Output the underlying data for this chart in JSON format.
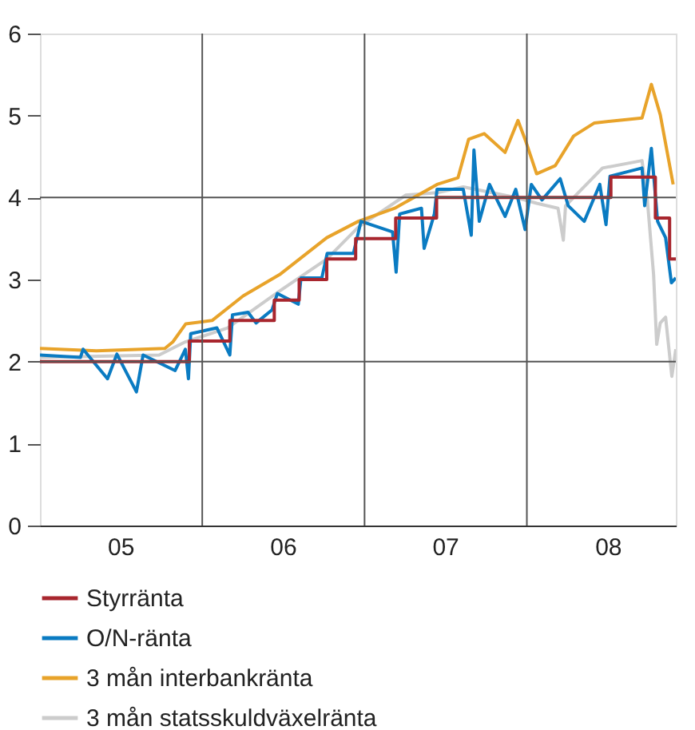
{
  "chart_data": {
    "type": "line",
    "xlim": [
      "2005-01-01",
      "2008-12-01"
    ],
    "xticks": [
      {
        "value": "2005-07-01",
        "label": "05"
      },
      {
        "value": "2006-07-01",
        "label": "06"
      },
      {
        "value": "2007-07-01",
        "label": "07"
      },
      {
        "value": "2008-07-01",
        "label": "08"
      }
    ],
    "ylim": [
      0,
      6
    ],
    "yticks": [
      0,
      1,
      2,
      3,
      4,
      5,
      6
    ],
    "grid": false,
    "legend": "bottom",
    "line_style": "solid",
    "marker": "none",
    "ref_lines": [
      {
        "axis": "x",
        "value": "2006-01-01",
        "color": "#555555"
      },
      {
        "axis": "x",
        "value": "2007-01-01",
        "color": "#555555"
      },
      {
        "axis": "x",
        "value": "2008-01-01",
        "color": "#555555"
      },
      {
        "axis": "y",
        "value": 2,
        "color": "#555555"
      },
      {
        "axis": "y",
        "value": 4,
        "color": "#555555"
      }
    ],
    "series": [
      {
        "name": "Styrränta",
        "type": "step",
        "color": "#a8262e",
        "x": [
          "2005-01-01",
          "2005-12-03",
          "2006-03-04",
          "2006-06-12",
          "2006-08-07",
          "2006-10-08",
          "2006-12-12",
          "2007-03-12",
          "2007-06-12",
          "2008-07-08",
          "2008-10-16",
          "2008-11-17",
          "2008-12-01"
        ],
        "values": [
          2.0,
          2.25,
          2.5,
          2.75,
          3.0,
          3.25,
          3.5,
          3.75,
          4.0,
          4.25,
          3.75,
          3.25,
          3.25
        ]
      },
      {
        "name": "O/N-ränta",
        "type": "line",
        "color": "#0a7bc2",
        "x": [
          "2005-01-01",
          "2005-04-02",
          "2005-04-08",
          "2005-06-02",
          "2005-06-23",
          "2005-08-06",
          "2005-08-21",
          "2005-11-01",
          "2005-11-24",
          "2005-12-01",
          "2005-12-06",
          "2006-02-03",
          "2006-03-04",
          "2006-03-10",
          "2006-04-14",
          "2006-05-02",
          "2006-06-07",
          "2006-06-19",
          "2006-08-05",
          "2006-08-11",
          "2006-09-27",
          "2006-10-09",
          "2006-12-07",
          "2006-12-24",
          "2007-03-05",
          "2007-03-13",
          "2007-03-21",
          "2007-05-09",
          "2007-05-15",
          "2007-06-07",
          "2007-06-13",
          "2007-08-11",
          "2007-08-29",
          "2007-09-04",
          "2007-09-16",
          "2007-10-09",
          "2007-11-13",
          "2007-12-07",
          "2007-12-28",
          "2008-01-11",
          "2008-02-04",
          "2008-03-16",
          "2008-04-03",
          "2008-05-09",
          "2008-06-13",
          "2008-06-27",
          "2008-07-06",
          "2008-09-16",
          "2008-09-22",
          "2008-10-07",
          "2008-10-21",
          "2008-11-08",
          "2008-11-21",
          "2008-12-01"
        ],
        "values": [
          2.08,
          2.05,
          2.15,
          1.79,
          2.09,
          1.63,
          2.08,
          1.89,
          2.15,
          1.79,
          2.34,
          2.41,
          2.08,
          2.57,
          2.6,
          2.47,
          2.63,
          2.83,
          2.7,
          3.02,
          3.02,
          3.32,
          3.32,
          3.71,
          3.58,
          3.09,
          3.8,
          3.87,
          3.38,
          3.8,
          4.1,
          4.1,
          3.54,
          4.58,
          3.71,
          4.16,
          3.77,
          4.1,
          3.61,
          4.16,
          3.97,
          4.23,
          3.9,
          3.71,
          4.16,
          3.67,
          4.26,
          4.36,
          3.9,
          4.6,
          3.71,
          3.51,
          2.96,
          3.02
        ]
      },
      {
        "name": "3 mån interbankränta",
        "type": "line",
        "color": "#e8a32a",
        "x": [
          "2005-01-01",
          "2005-05-08",
          "2005-10-09",
          "2005-10-27",
          "2005-11-25",
          "2006-01-23",
          "2006-04-03",
          "2006-06-24",
          "2006-10-08",
          "2006-12-18",
          "2007-03-10",
          "2007-06-13",
          "2007-07-30",
          "2007-08-23",
          "2007-09-27",
          "2007-11-13",
          "2007-12-12",
          "2007-12-30",
          "2008-01-23",
          "2008-03-05",
          "2008-04-15",
          "2008-06-01",
          "2008-09-16",
          "2008-10-07",
          "2008-10-27",
          "2008-11-25"
        ],
        "values": [
          2.16,
          2.13,
          2.16,
          2.24,
          2.46,
          2.5,
          2.8,
          3.06,
          3.51,
          3.71,
          3.87,
          4.16,
          4.24,
          4.71,
          4.78,
          4.55,
          4.94,
          4.68,
          4.29,
          4.39,
          4.75,
          4.91,
          4.97,
          5.38,
          5.01,
          4.16
        ]
      },
      {
        "name": "3 mån statsskuldväxelränta",
        "type": "line",
        "color": "#cccccc",
        "x": [
          "2005-01-01",
          "2005-09-26",
          "2005-11-24",
          "2006-02-27",
          "2006-06-24",
          "2006-10-08",
          "2006-12-18",
          "2007-04-04",
          "2007-06-13",
          "2007-08-11",
          "2007-12-07",
          "2008-01-23",
          "2008-03-11",
          "2008-03-23",
          "2008-03-28",
          "2008-06-19",
          "2008-09-16",
          "2008-09-28",
          "2008-10-12",
          "2008-10-19",
          "2008-10-27",
          "2008-11-08",
          "2008-11-22",
          "2008-12-01"
        ],
        "values": [
          2.05,
          2.08,
          2.24,
          2.41,
          2.86,
          3.25,
          3.64,
          4.03,
          4.06,
          4.13,
          4.0,
          3.93,
          3.87,
          3.48,
          3.9,
          4.36,
          4.45,
          3.97,
          3.06,
          2.21,
          2.47,
          2.54,
          1.82,
          2.15
        ]
      }
    ]
  }
}
